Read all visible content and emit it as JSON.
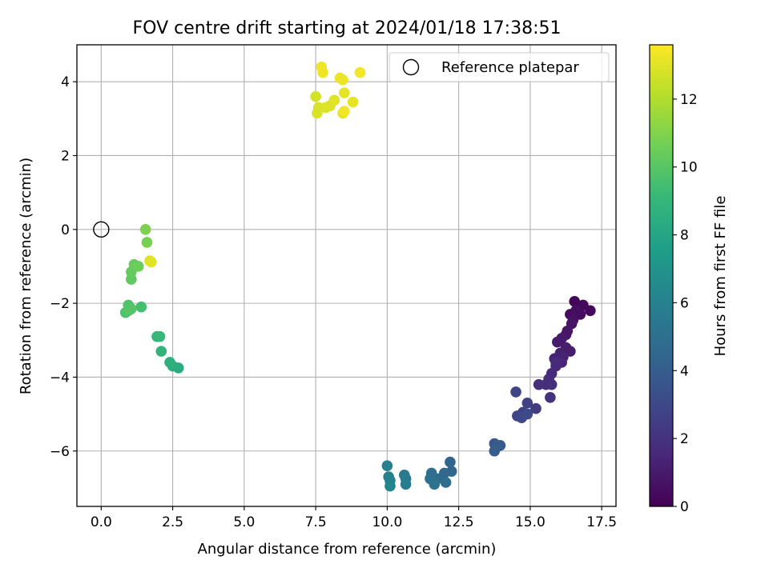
{
  "chart_data": {
    "type": "scatter",
    "title": "FOV centre drift starting at 2024/01/18 17:38:51",
    "xlabel": "Angular distance from reference (arcmin)",
    "ylabel": "Rotation from reference (arcmin)",
    "xlim": [
      -0.85,
      18.0
    ],
    "ylim": [
      -7.5,
      5.0
    ],
    "xticks": [
      0.0,
      2.5,
      5.0,
      7.5,
      10.0,
      12.5,
      15.0,
      17.5
    ],
    "xtick_labels": [
      "0.0",
      "2.5",
      "5.0",
      "7.5",
      "10.0",
      "12.5",
      "15.0",
      "17.5"
    ],
    "yticks": [
      -6,
      -4,
      -2,
      0,
      2,
      4
    ],
    "ytick_labels": [
      "−6",
      "−4",
      "−2",
      "0",
      "2",
      "4"
    ],
    "grid": true,
    "legend": {
      "position": "top-right",
      "entries": [
        "Reference platepar"
      ]
    },
    "colorbar": {
      "label": "Hours from first FF file",
      "colormap": "viridis",
      "range": [
        0,
        13.6
      ],
      "ticks": [
        0,
        2,
        4,
        6,
        8,
        10,
        12
      ],
      "tick_labels": [
        "0",
        "2",
        "4",
        "6",
        "8",
        "10",
        "12"
      ]
    },
    "reference_point": {
      "name": "Reference platepar",
      "x": 0.0,
      "y": 0.0
    },
    "series": [
      {
        "points": [
          {
            "x": 16.55,
            "y": -1.95,
            "t": 0.2
          },
          {
            "x": 16.85,
            "y": -2.05,
            "t": 0.3
          },
          {
            "x": 17.1,
            "y": -2.2,
            "t": 0.3
          },
          {
            "x": 16.75,
            "y": -2.3,
            "t": 0.4
          },
          {
            "x": 16.4,
            "y": -2.3,
            "t": 0.4
          },
          {
            "x": 16.6,
            "y": -2.2,
            "t": 0.5
          },
          {
            "x": 16.5,
            "y": -2.45,
            "t": 0.6
          },
          {
            "x": 16.45,
            "y": -2.55,
            "t": 0.7
          },
          {
            "x": 16.3,
            "y": -2.75,
            "t": 0.8
          },
          {
            "x": 16.25,
            "y": -2.85,
            "t": 0.9
          },
          {
            "x": 16.1,
            "y": -2.95,
            "t": 1.0
          },
          {
            "x": 15.95,
            "y": -3.05,
            "t": 1.0
          },
          {
            "x": 16.25,
            "y": -3.2,
            "t": 1.1
          },
          {
            "x": 16.4,
            "y": -3.3,
            "t": 1.1
          },
          {
            "x": 16.05,
            "y": -3.35,
            "t": 1.2
          },
          {
            "x": 15.85,
            "y": -3.5,
            "t": 1.3
          },
          {
            "x": 16.15,
            "y": -3.45,
            "t": 1.3
          },
          {
            "x": 16.1,
            "y": -3.6,
            "t": 1.4
          },
          {
            "x": 15.9,
            "y": -3.7,
            "t": 1.5
          },
          {
            "x": 15.75,
            "y": -3.9,
            "t": 1.6
          },
          {
            "x": 15.9,
            "y": -3.6,
            "t": 1.6
          },
          {
            "x": 15.65,
            "y": -4.05,
            "t": 1.7
          },
          {
            "x": 15.55,
            "y": -4.2,
            "t": 1.8
          },
          {
            "x": 15.3,
            "y": -4.2,
            "t": 1.9
          },
          {
            "x": 15.75,
            "y": -4.2,
            "t": 1.9
          },
          {
            "x": 15.7,
            "y": -4.55,
            "t": 2.0
          },
          {
            "x": 15.2,
            "y": -4.85,
            "t": 2.4
          },
          {
            "x": 14.9,
            "y": -4.7,
            "t": 2.6
          },
          {
            "x": 14.75,
            "y": -4.95,
            "t": 2.7
          },
          {
            "x": 14.5,
            "y": -4.4,
            "t": 2.8
          },
          {
            "x": 14.55,
            "y": -5.05,
            "t": 2.9
          },
          {
            "x": 14.9,
            "y": -5.0,
            "t": 3.0
          },
          {
            "x": 14.7,
            "y": -5.1,
            "t": 3.0
          },
          {
            "x": 13.75,
            "y": -5.8,
            "t": 3.7
          },
          {
            "x": 13.8,
            "y": -5.9,
            "t": 3.8
          },
          {
            "x": 13.95,
            "y": -5.85,
            "t": 3.9
          },
          {
            "x": 13.75,
            "y": -6.0,
            "t": 4.0
          },
          {
            "x": 12.2,
            "y": -6.3,
            "t": 4.4
          },
          {
            "x": 12.25,
            "y": -6.55,
            "t": 4.5
          },
          {
            "x": 12.0,
            "y": -6.6,
            "t": 4.6
          },
          {
            "x": 11.75,
            "y": -6.75,
            "t": 4.7
          },
          {
            "x": 12.05,
            "y": -6.85,
            "t": 4.8
          },
          {
            "x": 11.55,
            "y": -6.6,
            "t": 4.9
          },
          {
            "x": 11.5,
            "y": -6.75,
            "t": 5.0
          },
          {
            "x": 11.65,
            "y": -6.9,
            "t": 5.1
          },
          {
            "x": 10.6,
            "y": -6.65,
            "t": 5.5
          },
          {
            "x": 10.65,
            "y": -6.75,
            "t": 5.6
          },
          {
            "x": 10.65,
            "y": -6.9,
            "t": 5.7
          },
          {
            "x": 10.0,
            "y": -6.4,
            "t": 5.9
          },
          {
            "x": 10.05,
            "y": -6.7,
            "t": 6.0
          },
          {
            "x": 10.1,
            "y": -6.8,
            "t": 6.1
          },
          {
            "x": 10.1,
            "y": -6.95,
            "t": 6.2
          },
          {
            "x": 2.7,
            "y": -3.75,
            "t": 8.4
          },
          {
            "x": 2.5,
            "y": -3.7,
            "t": 8.5
          },
          {
            "x": 2.4,
            "y": -3.6,
            "t": 8.6
          },
          {
            "x": 2.1,
            "y": -3.3,
            "t": 8.8
          },
          {
            "x": 1.95,
            "y": -2.9,
            "t": 9.0
          },
          {
            "x": 2.05,
            "y": -2.9,
            "t": 9.1
          },
          {
            "x": 1.4,
            "y": -2.1,
            "t": 9.5
          },
          {
            "x": 0.85,
            "y": -2.25,
            "t": 9.7
          },
          {
            "x": 0.95,
            "y": -2.05,
            "t": 9.8
          },
          {
            "x": 1.05,
            "y": -2.15,
            "t": 9.9
          },
          {
            "x": 0.95,
            "y": -2.2,
            "t": 9.9
          },
          {
            "x": 1.05,
            "y": -1.35,
            "t": 10.2
          },
          {
            "x": 1.05,
            "y": -1.15,
            "t": 10.3
          },
          {
            "x": 1.15,
            "y": -0.95,
            "t": 10.4
          },
          {
            "x": 1.3,
            "y": -1.0,
            "t": 10.5
          },
          {
            "x": 1.6,
            "y": -0.35,
            "t": 10.8
          },
          {
            "x": 1.55,
            "y": 0.0,
            "t": 10.9
          },
          {
            "x": 1.7,
            "y": -0.85,
            "t": 12.9
          },
          {
            "x": 1.75,
            "y": -0.88,
            "t": 13.0
          },
          {
            "x": 7.5,
            "y": 3.6,
            "t": 12.7
          },
          {
            "x": 7.6,
            "y": 3.3,
            "t": 12.8
          },
          {
            "x": 7.55,
            "y": 3.15,
            "t": 12.8
          },
          {
            "x": 7.85,
            "y": 3.3,
            "t": 12.9
          },
          {
            "x": 8.0,
            "y": 3.35,
            "t": 12.9
          },
          {
            "x": 8.15,
            "y": 3.5,
            "t": 13.0
          },
          {
            "x": 8.45,
            "y": 3.15,
            "t": 13.0
          },
          {
            "x": 8.5,
            "y": 3.7,
            "t": 13.1
          },
          {
            "x": 8.8,
            "y": 3.45,
            "t": 13.1
          },
          {
            "x": 8.35,
            "y": 4.1,
            "t": 13.2
          },
          {
            "x": 8.45,
            "y": 4.05,
            "t": 13.2
          },
          {
            "x": 7.75,
            "y": 4.25,
            "t": 13.3
          },
          {
            "x": 7.7,
            "y": 4.4,
            "t": 13.3
          },
          {
            "x": 9.05,
            "y": 4.25,
            "t": 13.4
          },
          {
            "x": 8.5,
            "y": 3.2,
            "t": 13.4
          }
        ]
      }
    ]
  },
  "colors": {
    "grid": "#b0b0b0",
    "axis": "#000000",
    "viridis_stops": [
      "#440154",
      "#482878",
      "#3e4989",
      "#31688e",
      "#26828e",
      "#1f9e89",
      "#35b779",
      "#6ece58",
      "#b5de2b",
      "#fde725"
    ]
  }
}
